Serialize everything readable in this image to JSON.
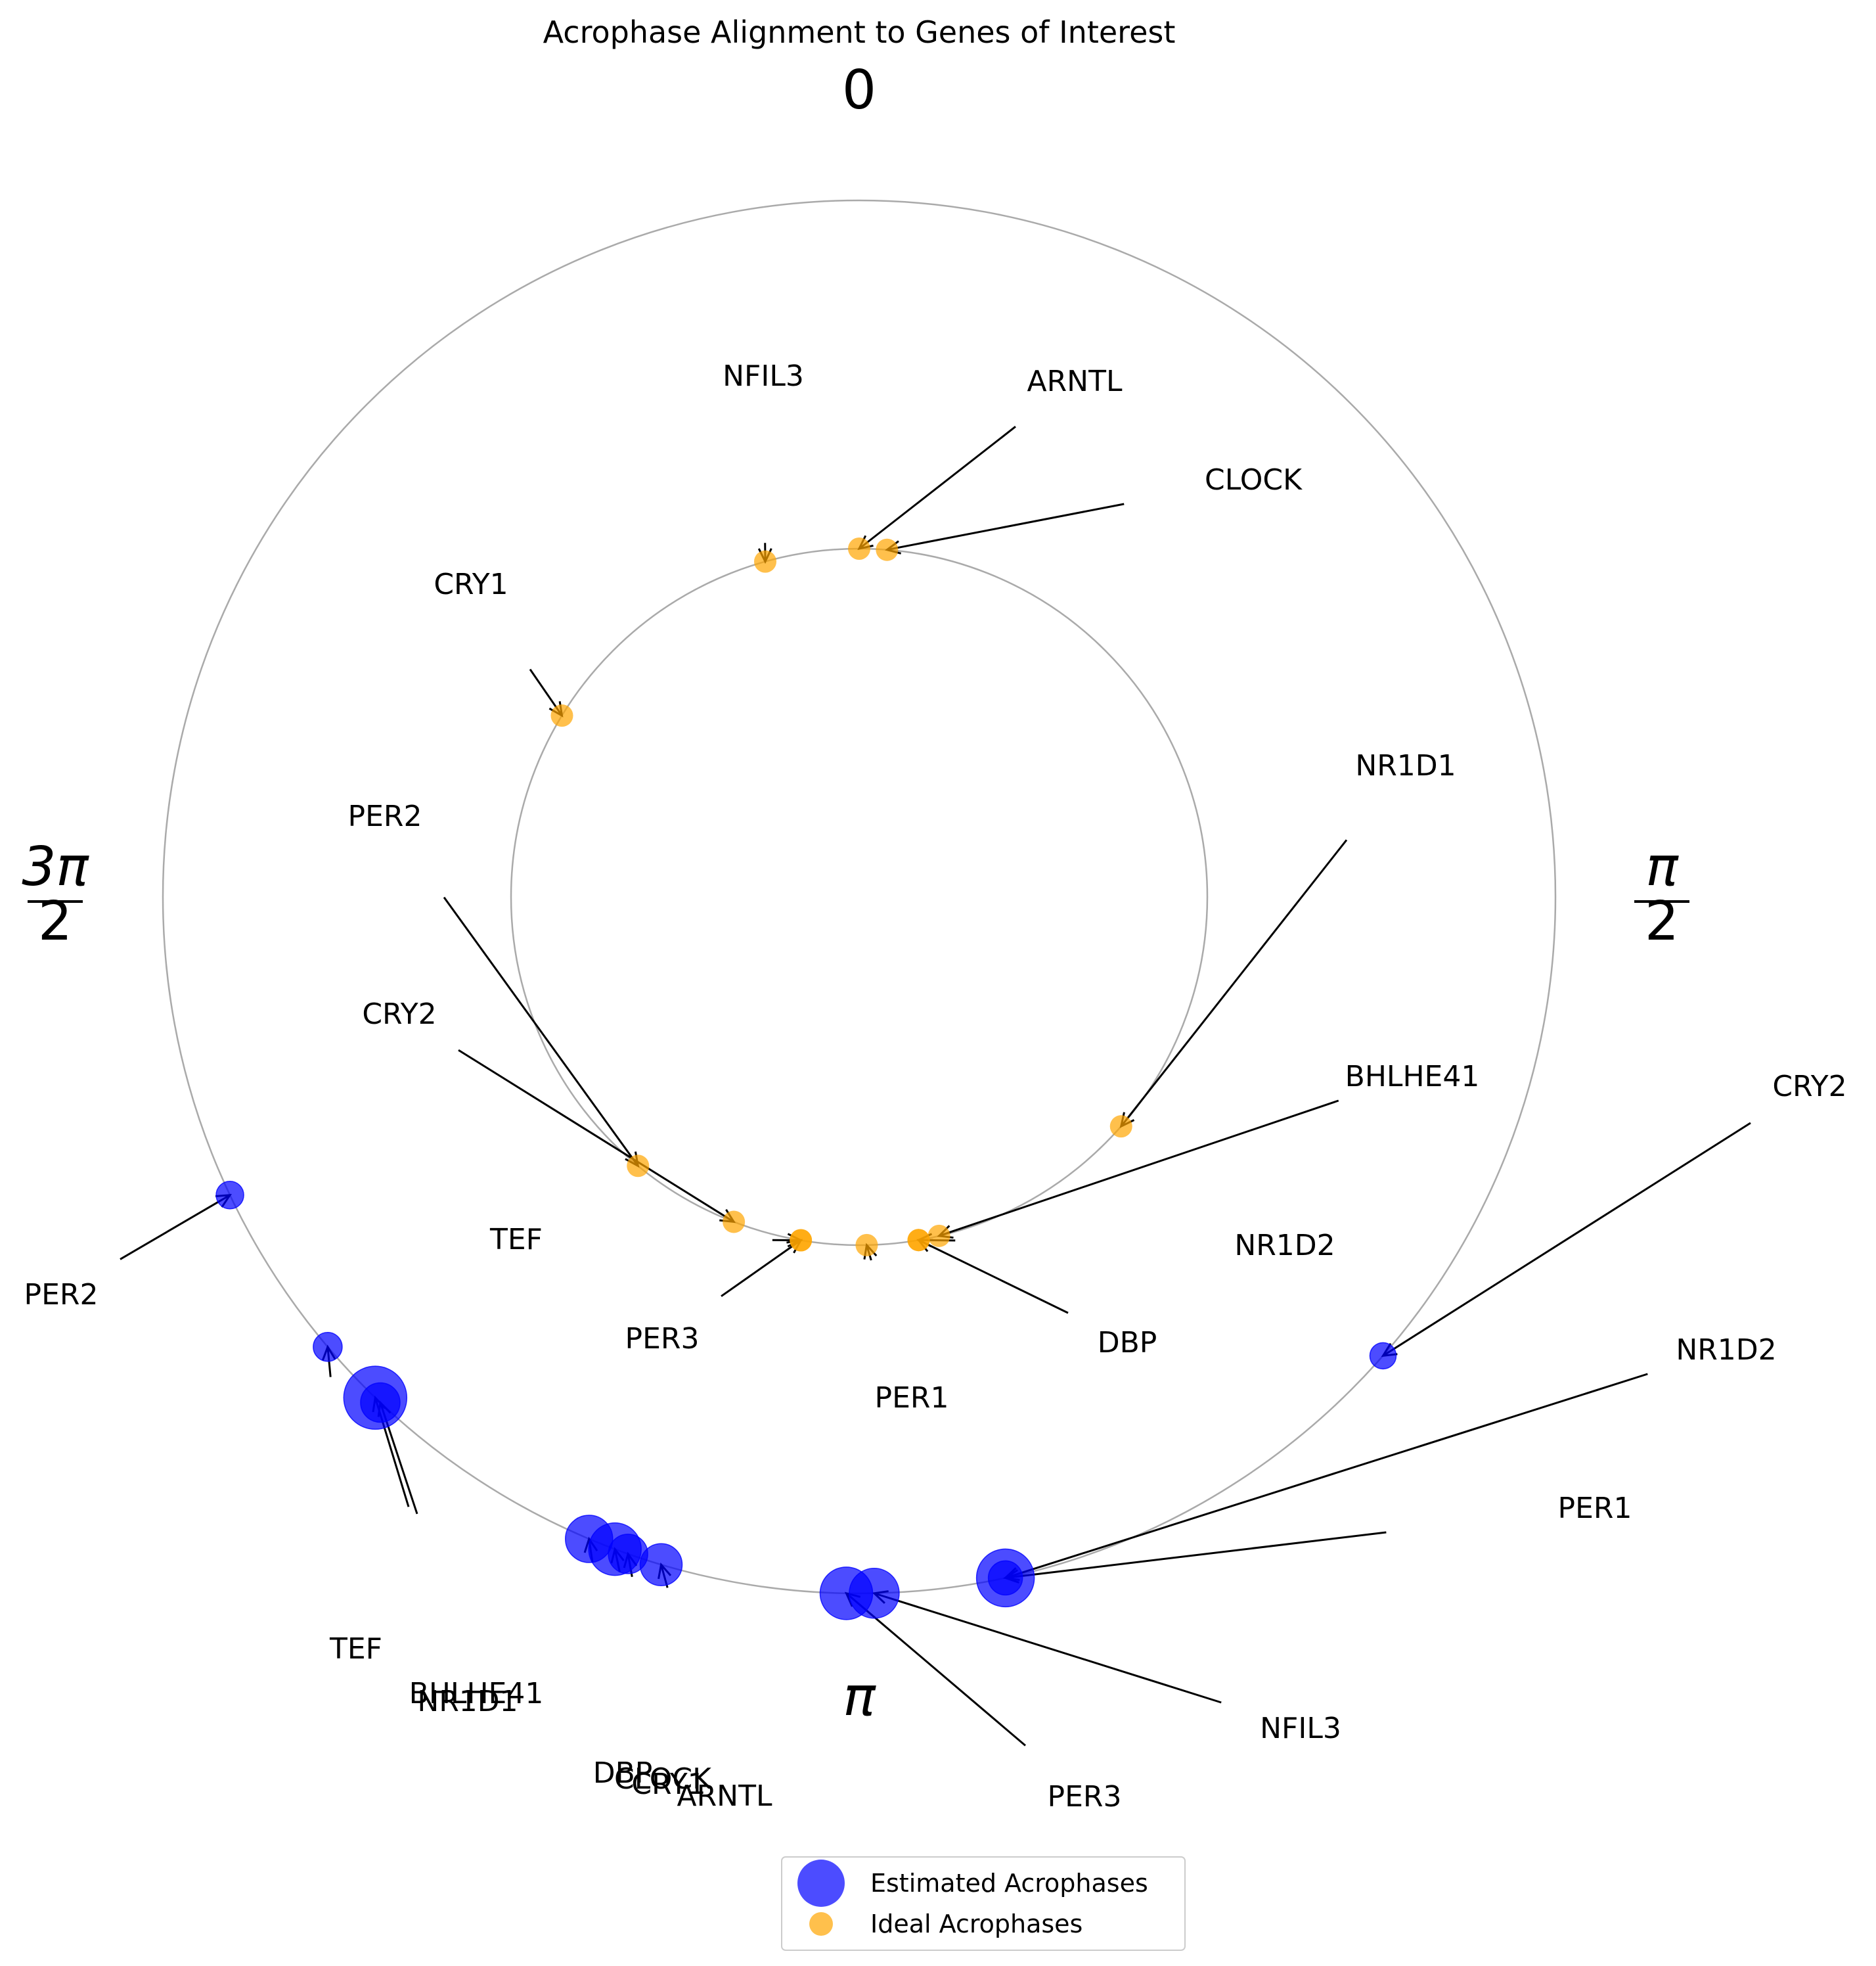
{
  "chart_data": {
    "type": "polar-scatter",
    "title": "Acrophase Alignment to Genes of Interest",
    "direction": "clockwise",
    "zero_location": "top",
    "axis_labels": {
      "zero": "0",
      "half_pi": "π/2",
      "pi": "π",
      "three_half_pi": "3π/2"
    },
    "rings": [
      {
        "name": "ideal",
        "relative_radius": 1.0
      },
      {
        "name": "estimated",
        "relative_radius": 2.0
      }
    ],
    "legend": {
      "placement": "bottom-center",
      "entries": [
        {
          "label": "Estimated Acrophases",
          "color": "#0000ff"
        },
        {
          "label": "Ideal Acrophases",
          "color": "#ffa500"
        }
      ]
    },
    "series": [
      {
        "name": "Ideal Acrophases",
        "color": "#ffa500",
        "points": [
          {
            "gene": "ARNTL",
            "phase": 0.0
          },
          {
            "gene": "CLOCK",
            "phase": 0.08
          },
          {
            "gene": "NFIL3",
            "phase": 6.01
          },
          {
            "gene": "CRY1",
            "phase": 5.26
          },
          {
            "gene": "NR1D1",
            "phase": 2.29
          },
          {
            "gene": "BHLHE41",
            "phase": 2.91
          },
          {
            "gene": "NR1D2",
            "phase": 2.97
          },
          {
            "gene": "DBP",
            "phase": 2.97
          },
          {
            "gene": "PER1",
            "phase": 3.12
          },
          {
            "gene": "PER3",
            "phase": 3.31
          },
          {
            "gene": "TEF",
            "phase": 3.31
          },
          {
            "gene": "CRY2",
            "phase": 3.51
          },
          {
            "gene": "PER2",
            "phase": 3.83
          }
        ]
      },
      {
        "name": "Estimated Acrophases",
        "color": "#0000ff",
        "points": [
          {
            "gene": "CRY2",
            "phase": 2.29,
            "size": 20
          },
          {
            "gene": "NR1D2",
            "phase": 2.93,
            "size": 44
          },
          {
            "gene": "PER1",
            "phase": 2.93,
            "size": 26
          },
          {
            "gene": "NFIL3",
            "phase": 3.12,
            "size": 38
          },
          {
            "gene": "PER3",
            "phase": 3.16,
            "size": 40
          },
          {
            "gene": "ARNTL",
            "phase": 3.43,
            "size": 32
          },
          {
            "gene": "CRY1",
            "phase": 3.48,
            "size": 30
          },
          {
            "gene": "CLOCK",
            "phase": 3.5,
            "size": 40
          },
          {
            "gene": "DBP",
            "phase": 3.54,
            "size": 36
          },
          {
            "gene": "BHLHE41",
            "phase": 3.9,
            "size": 30
          },
          {
            "gene": "NR1D1",
            "phase": 3.91,
            "size": 48
          },
          {
            "gene": "TEF",
            "phase": 4.01,
            "size": 22
          },
          {
            "gene": "PER2",
            "phase": 4.27,
            "size": 21
          }
        ]
      }
    ]
  }
}
